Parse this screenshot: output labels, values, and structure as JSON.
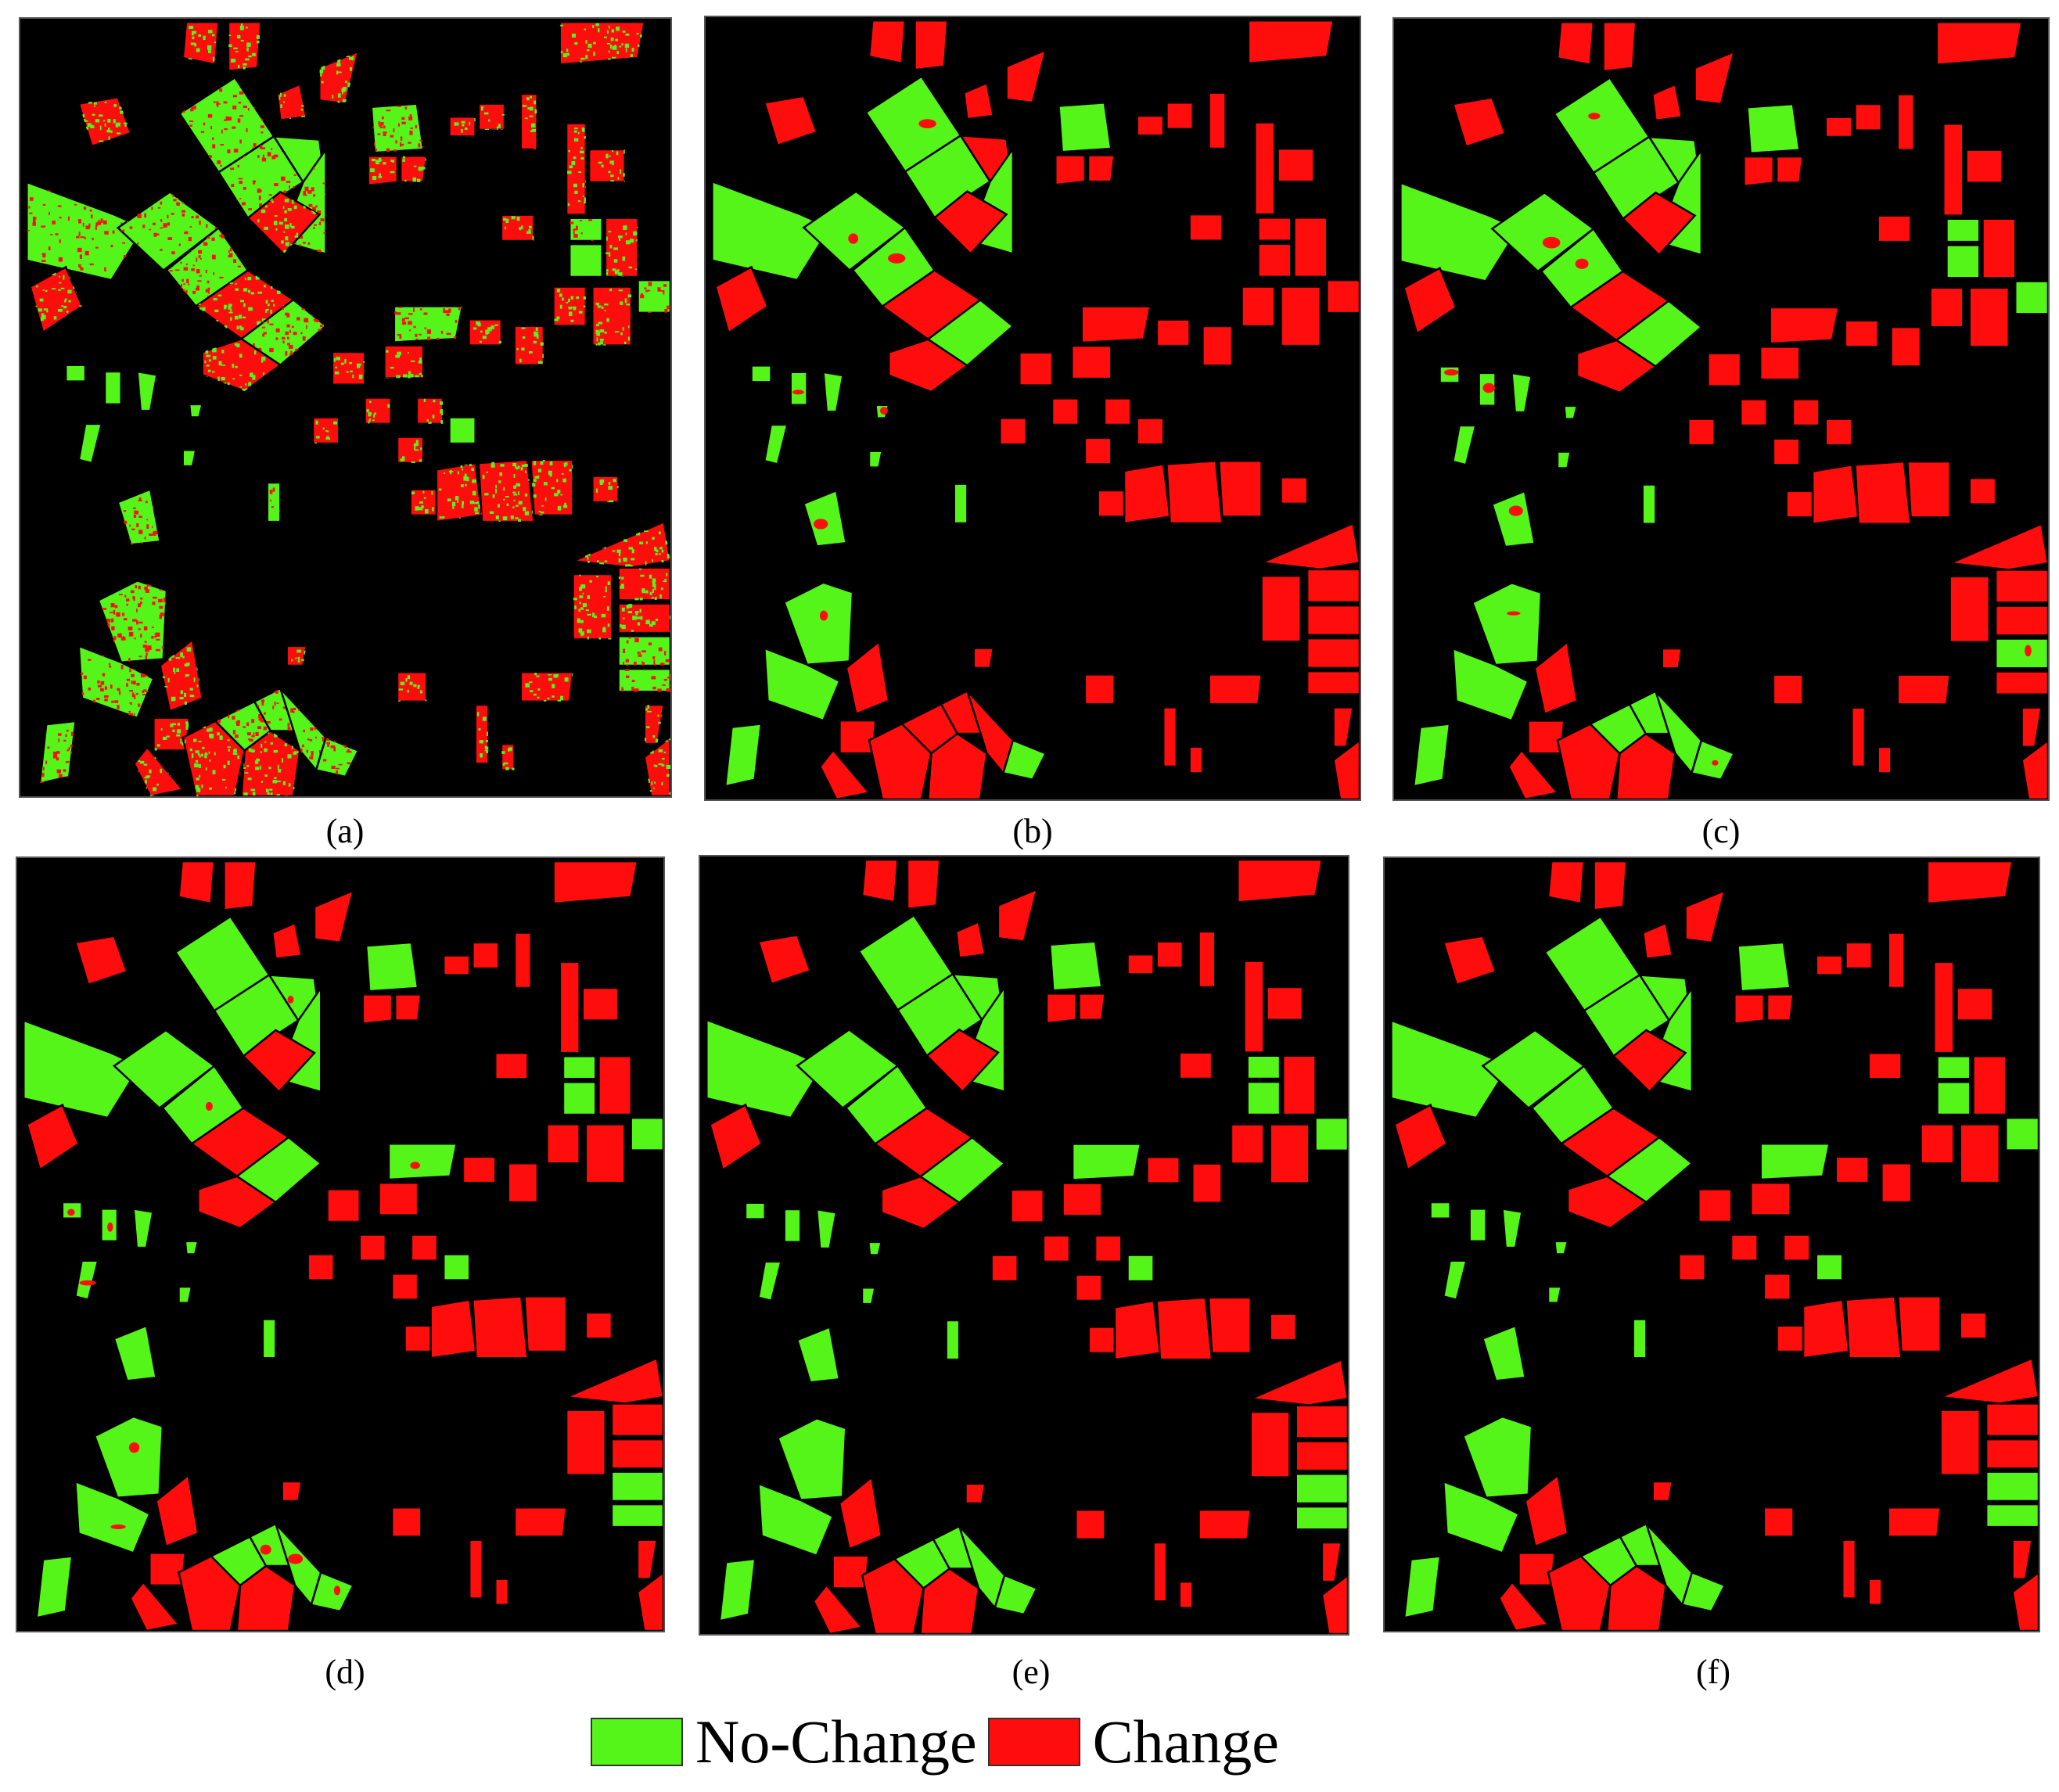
{
  "figure": {
    "captions": [
      "(a)",
      "(b)",
      "(c)",
      "(d)",
      "(e)",
      "(f)"
    ],
    "legend": [
      {
        "label": "No-Change",
        "color": "#55f51a"
      },
      {
        "label": "Change",
        "color": "#ff0d0d"
      }
    ],
    "colors": {
      "background": "#000000",
      "no_change": "#55f51a",
      "change": "#ff0d0d"
    }
  }
}
